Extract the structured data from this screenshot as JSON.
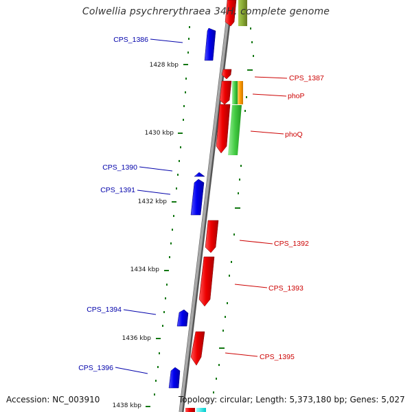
{
  "title": "Colwellia psychrerythraea 34H, complete genome",
  "footer": {
    "accession": "Accession: NC_003910",
    "summary": "Topology: circular; Length: 5,373,180 bp; Genes: 5,027"
  },
  "colors": {
    "forward_gene": "#ee0000",
    "reverse_gene": "#0000ee",
    "pathway_green": "#44cc44",
    "pathway_orange": "#ff9900",
    "pathway_olive": "#88aa33",
    "tick_color": "#117711",
    "backbone": "#888888",
    "label_forward": "#cc0000",
    "label_reverse": "#0000aa"
  },
  "scale_ticks": [
    {
      "label": "1428 kbp"
    },
    {
      "label": "1430 kbp"
    },
    {
      "label": "1432 kbp"
    },
    {
      "label": "1434 kbp"
    },
    {
      "label": "1436 kbp"
    },
    {
      "label": "1438 kbp"
    }
  ],
  "gene_labels": [
    {
      "name": "CPS_1386",
      "strand": "reverse"
    },
    {
      "name": "CPS_1387",
      "strand": "forward"
    },
    {
      "name": "phoP",
      "strand": "forward"
    },
    {
      "name": "phoQ",
      "strand": "forward"
    },
    {
      "name": "CPS_1390",
      "strand": "reverse"
    },
    {
      "name": "CPS_1391",
      "strand": "reverse"
    },
    {
      "name": "CPS_1392",
      "strand": "forward"
    },
    {
      "name": "CPS_1393",
      "strand": "forward"
    },
    {
      "name": "CPS_1394",
      "strand": "reverse"
    },
    {
      "name": "CPS_1395",
      "strand": "forward"
    },
    {
      "name": "CPS_1396",
      "strand": "reverse"
    }
  ]
}
